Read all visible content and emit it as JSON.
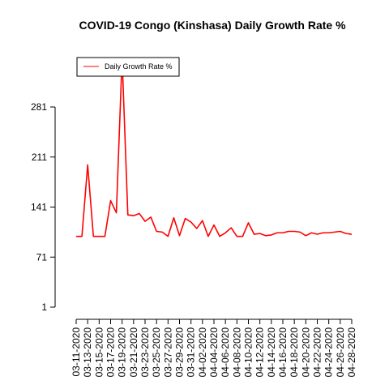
{
  "chart_data": {
    "type": "line",
    "title": "COVID-19 Congo (Kinshasa) Daily Growth Rate %",
    "xlabel": "",
    "ylabel": "",
    "ylim": [
      1,
      281
    ],
    "y_ticks": [
      1,
      71,
      141,
      211,
      281
    ],
    "x": [
      "03-11-2020",
      "03-12-2020",
      "03-13-2020",
      "03-14-2020",
      "03-15-2020",
      "03-16-2020",
      "03-17-2020",
      "03-18-2020",
      "03-19-2020",
      "03-20-2020",
      "03-21-2020",
      "03-22-2020",
      "03-23-2020",
      "03-24-2020",
      "03-25-2020",
      "03-26-2020",
      "03-27-2020",
      "03-28-2020",
      "03-29-2020",
      "03-30-2020",
      "03-31-2020",
      "04-01-2020",
      "04-02-2020",
      "04-03-2020",
      "04-04-2020",
      "04-05-2020",
      "04-06-2020",
      "04-07-2020",
      "04-08-2020",
      "04-09-2020",
      "04-10-2020",
      "04-11-2020",
      "04-12-2020",
      "04-13-2020",
      "04-14-2020",
      "04-15-2020",
      "04-16-2020",
      "04-17-2020",
      "04-18-2020",
      "04-19-2020",
      "04-20-2020",
      "04-21-2020",
      "04-22-2020",
      "04-23-2020",
      "04-24-2020",
      "04-25-2020",
      "04-26-2020",
      "04-27-2020",
      "04-28-2020"
    ],
    "x_tick_labels": [
      "03-11-2020",
      "03-13-2020",
      "03-15-2020",
      "03-17-2020",
      "03-19-2020",
      "03-21-2020",
      "03-23-2020",
      "03-25-2020",
      "03-27-2020",
      "03-29-2020",
      "03-31-2020",
      "04-02-2020",
      "04-04-2020",
      "04-06-2020",
      "04-08-2020",
      "04-10-2020",
      "04-12-2020",
      "04-14-2020",
      "04-16-2020",
      "04-18-2020",
      "04-20-2020",
      "04-22-2020",
      "04-24-2020",
      "04-26-2020",
      "04-28-2020"
    ],
    "series": [
      {
        "name": "Daily Growth Rate %",
        "color": "#ff0000",
        "values": [
          100,
          100,
          200,
          100,
          100,
          100,
          150,
          133,
          350,
          130,
          129,
          132,
          121,
          127,
          107,
          106,
          100,
          126,
          101,
          125,
          120,
          111,
          122,
          100,
          116,
          100,
          105,
          112,
          100,
          100,
          119,
          103,
          104,
          101,
          102,
          105,
          105,
          107,
          107,
          106,
          101,
          105,
          103,
          105,
          105,
          106,
          107,
          104,
          103
        ]
      }
    ],
    "legend": {
      "position": "top-left"
    },
    "grid": false
  }
}
